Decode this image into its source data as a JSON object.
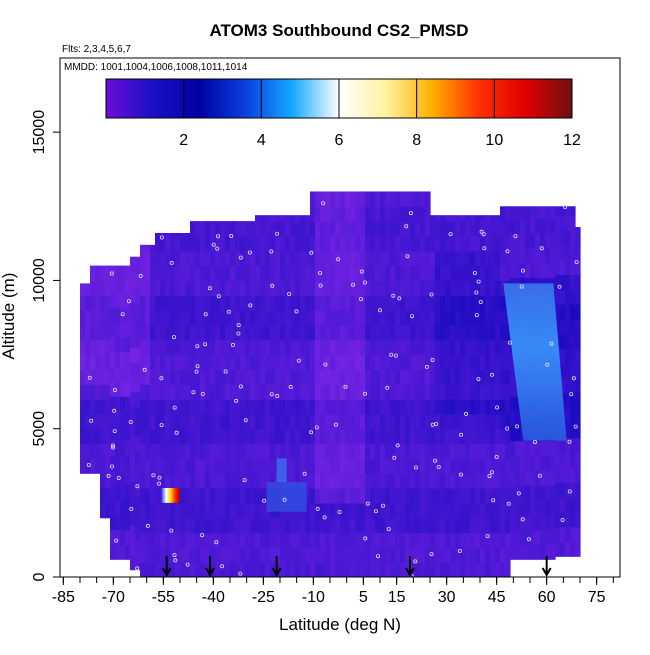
{
  "chart_data": {
    "type": "heatmap",
    "title": "ATOM3 Southbound CS2_PMSD",
    "flights_note": "Flts: 2,3,4,5,6,7",
    "dates_note": "MMDD: 1001,1004,1006,1008,1011,1014",
    "xlabel": "Latitude (deg N)",
    "ylabel": "Altitude (m)",
    "x_ticks": [
      "-85",
      "-70",
      "-55",
      "-40",
      "-25",
      "-10",
      "5",
      "15",
      "30",
      "45",
      "60",
      "75"
    ],
    "x_tick_values": [
      -85,
      -70,
      -55,
      -40,
      -25,
      -10,
      5,
      15,
      30,
      45,
      60,
      75
    ],
    "y_ticks": [
      "0",
      "5000",
      "10000",
      "15000"
    ],
    "y_tick_values": [
      0,
      5000,
      10000,
      15000
    ],
    "xlim": [
      -86,
      82
    ],
    "ylim": [
      0,
      17500
    ],
    "colorbar": {
      "ticks": [
        "2",
        "4",
        "6",
        "8",
        "10",
        "12"
      ],
      "tick_values": [
        2,
        4,
        6,
        8,
        10,
        12
      ],
      "range": [
        0,
        12
      ],
      "colors": [
        "#6a0dd6",
        "#1a10c8",
        "#0000a0",
        "#0a3fe0",
        "#14a8ff",
        "#ffffff",
        "#fff4a0",
        "#ffb000",
        "#ff3000",
        "#e00000",
        "#6e1010"
      ]
    },
    "profile_markers_lat": [
      -54,
      -41,
      -21,
      19,
      60
    ],
    "hotspot": {
      "lat": -54,
      "altitude_range": [
        2500,
        3000
      ],
      "value_max": 12
    },
    "colors": {
      "background": "#7a22e8",
      "deep": "#1408c0",
      "light": "#3c8cf0"
    }
  }
}
